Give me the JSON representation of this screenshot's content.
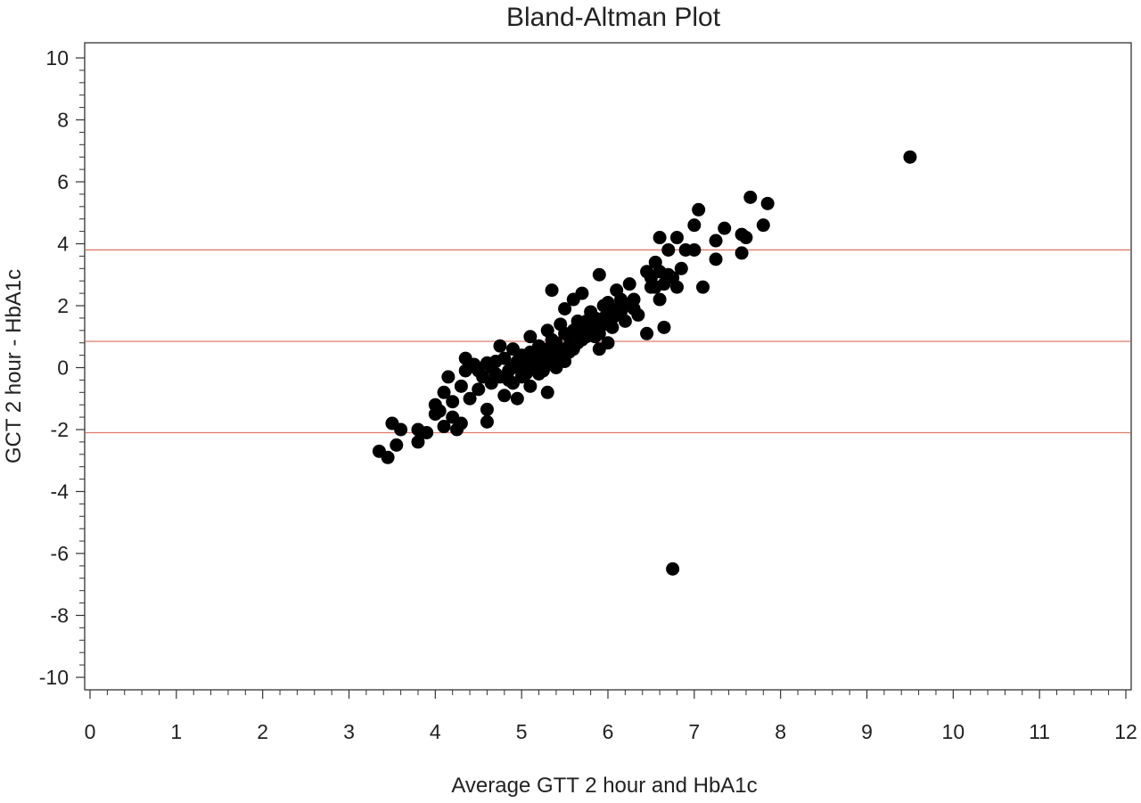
{
  "chart_data": {
    "type": "scatter",
    "title": "Bland-Altman Plot",
    "xlabel": "Average GTT 2 hour and HbA1c",
    "ylabel": "GCT 2 hour - HbA1c",
    "xlim": [
      0,
      12
    ],
    "ylim": [
      -10,
      10
    ],
    "x_ticks": [
      "0",
      "1",
      "2",
      "3",
      "4",
      "5",
      "6",
      "7",
      "8",
      "9",
      "10",
      "11",
      "12"
    ],
    "y_ticks": [
      "10",
      "8",
      "6",
      "4",
      "2",
      "0",
      "-2",
      "-4",
      "-6",
      "-8",
      "-10"
    ],
    "grid": false,
    "legend": "none",
    "marker_color": "#000000",
    "reference_line_color": "#e07a6a",
    "reference_lines_y": [
      3.8,
      0.85,
      -2.1
    ],
    "points": [
      [
        3.35,
        -2.7
      ],
      [
        3.45,
        -2.9
      ],
      [
        3.5,
        -1.8
      ],
      [
        3.55,
        -2.5
      ],
      [
        3.6,
        -2.0
      ],
      [
        3.8,
        -2.0
      ],
      [
        3.8,
        -2.4
      ],
      [
        3.9,
        -2.1
      ],
      [
        4.0,
        -1.2
      ],
      [
        4.0,
        -1.5
      ],
      [
        4.05,
        -1.4
      ],
      [
        4.1,
        -1.9
      ],
      [
        4.1,
        -0.8
      ],
      [
        4.15,
        -0.3
      ],
      [
        4.2,
        -1.1
      ],
      [
        4.2,
        -1.6
      ],
      [
        4.25,
        -2.0
      ],
      [
        4.3,
        -1.8
      ],
      [
        4.3,
        -0.6
      ],
      [
        4.35,
        -0.1
      ],
      [
        4.35,
        0.3
      ],
      [
        4.4,
        -1.0
      ],
      [
        4.45,
        0.1
      ],
      [
        4.5,
        -0.7
      ],
      [
        4.55,
        -0.3
      ],
      [
        4.6,
        -1.75
      ],
      [
        4.6,
        -1.35
      ],
      [
        4.6,
        0.15
      ],
      [
        4.65,
        -0.5
      ],
      [
        4.7,
        -0.2
      ],
      [
        4.75,
        0.7
      ],
      [
        4.8,
        -0.9
      ],
      [
        4.8,
        0.3
      ],
      [
        4.85,
        -0.4
      ],
      [
        4.9,
        0.0
      ],
      [
        4.9,
        0.6
      ],
      [
        4.95,
        -1.0
      ],
      [
        5.0,
        -0.3
      ],
      [
        5.0,
        0.4
      ],
      [
        5.05,
        0.1
      ],
      [
        5.1,
        -0.6
      ],
      [
        5.1,
        1.0
      ],
      [
        5.15,
        0.3
      ],
      [
        5.2,
        -0.2
      ],
      [
        5.2,
        0.7
      ],
      [
        5.25,
        0.5
      ],
      [
        5.3,
        -0.8
      ],
      [
        5.3,
        1.2
      ],
      [
        5.35,
        0.2
      ],
      [
        5.35,
        2.5
      ],
      [
        5.4,
        0.8
      ],
      [
        5.4,
        0.0
      ],
      [
        5.45,
        1.4
      ],
      [
        5.5,
        0.4
      ],
      [
        5.5,
        1.9
      ],
      [
        5.55,
        1.0
      ],
      [
        5.6,
        0.6
      ],
      [
        5.6,
        2.2
      ],
      [
        5.65,
        1.5
      ],
      [
        5.7,
        0.9
      ],
      [
        5.7,
        2.4
      ],
      [
        5.75,
        1.2
      ],
      [
        5.8,
        1.8
      ],
      [
        5.85,
        1.0
      ],
      [
        5.9,
        0.6
      ],
      [
        5.9,
        3.0
      ],
      [
        5.95,
        1.6
      ],
      [
        6.0,
        2.1
      ],
      [
        6.0,
        0.8
      ],
      [
        6.05,
        1.3
      ],
      [
        6.1,
        2.5
      ],
      [
        6.15,
        1.8
      ],
      [
        6.2,
        1.5
      ],
      [
        6.25,
        2.7
      ],
      [
        6.3,
        2.2
      ],
      [
        6.35,
        1.7
      ],
      [
        6.45,
        3.1
      ],
      [
        6.45,
        1.1
      ],
      [
        6.5,
        2.6
      ],
      [
        6.55,
        3.4
      ],
      [
        6.6,
        2.2
      ],
      [
        6.6,
        4.2
      ],
      [
        6.65,
        1.3
      ],
      [
        6.7,
        3.0
      ],
      [
        6.7,
        3.8
      ],
      [
        6.75,
        2.9
      ],
      [
        6.8,
        4.2
      ],
      [
        6.8,
        2.6
      ],
      [
        6.85,
        3.2
      ],
      [
        6.9,
        3.8
      ],
      [
        7.0,
        4.6
      ],
      [
        7.0,
        3.8
      ],
      [
        7.05,
        5.1
      ],
      [
        7.1,
        2.6
      ],
      [
        7.25,
        4.1
      ],
      [
        7.25,
        3.5
      ],
      [
        7.35,
        4.5
      ],
      [
        7.55,
        4.3
      ],
      [
        7.55,
        3.7
      ],
      [
        7.6,
        4.2
      ],
      [
        7.65,
        5.5
      ],
      [
        7.8,
        4.6
      ],
      [
        7.85,
        5.3
      ],
      [
        9.5,
        6.8
      ],
      [
        6.75,
        -6.5
      ]
    ],
    "cluster_points": [
      [
        4.5,
        -0.1
      ],
      [
        4.7,
        0.2
      ],
      [
        4.9,
        -0.5
      ],
      [
        5.0,
        0.1
      ],
      [
        5.1,
        0.5
      ],
      [
        5.2,
        0.2
      ],
      [
        5.25,
        -0.1
      ],
      [
        5.3,
        0.6
      ],
      [
        5.35,
        0.9
      ],
      [
        5.4,
        0.3
      ],
      [
        5.45,
        0.6
      ],
      [
        5.5,
        1.1
      ],
      [
        5.5,
        0.2
      ],
      [
        5.55,
        0.7
      ],
      [
        5.6,
        1.2
      ],
      [
        5.65,
        0.8
      ],
      [
        5.7,
        1.4
      ],
      [
        5.75,
        1.0
      ],
      [
        5.8,
        1.3
      ],
      [
        5.85,
        1.6
      ],
      [
        5.9,
        1.1
      ],
      [
        5.95,
        2.0
      ],
      [
        6.0,
        1.5
      ],
      [
        6.05,
        1.9
      ],
      [
        6.1,
        1.7
      ],
      [
        6.15,
        2.2
      ],
      [
        6.2,
        2.0
      ],
      [
        6.3,
        1.9
      ],
      [
        6.5,
        2.9
      ],
      [
        6.55,
        2.6
      ],
      [
        6.6,
        3.1
      ],
      [
        6.65,
        2.7
      ],
      [
        5.15,
        0.0
      ],
      [
        5.05,
        -0.2
      ],
      [
        4.95,
        0.2
      ],
      [
        4.85,
        -0.1
      ],
      [
        4.75,
        -0.3
      ],
      [
        4.65,
        0.0
      ],
      [
        5.25,
        0.4
      ],
      [
        5.45,
        0.3
      ],
      [
        5.55,
        0.5
      ],
      [
        5.65,
        1.0
      ],
      [
        5.75,
        1.5
      ],
      [
        5.85,
        1.2
      ],
      [
        5.95,
        1.4
      ],
      [
        6.05,
        1.6
      ],
      [
        5.3,
        0.1
      ],
      [
        5.4,
        0.5
      ]
    ]
  }
}
